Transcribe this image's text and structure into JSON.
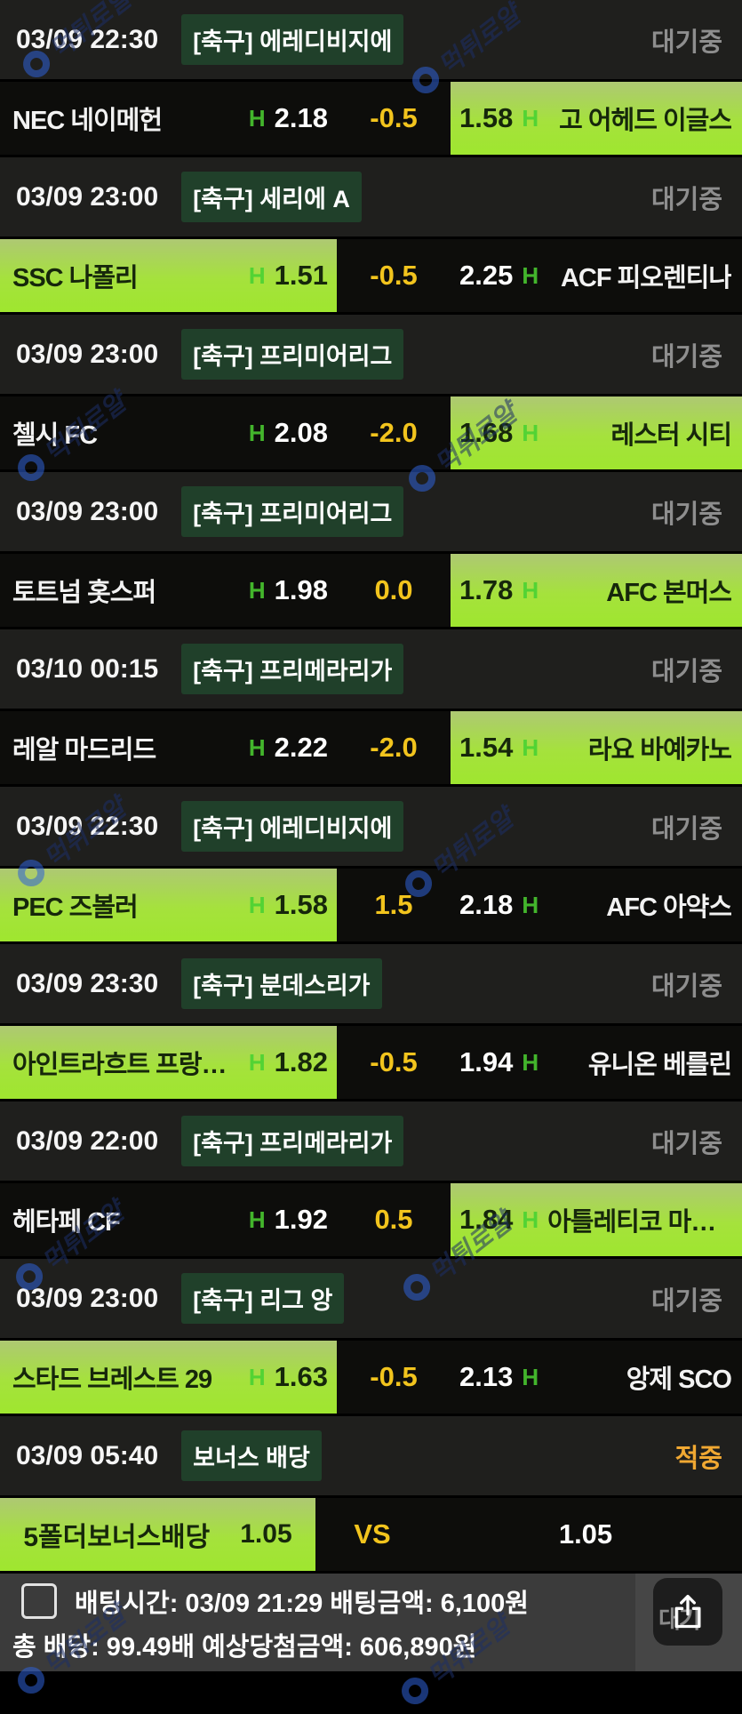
{
  "labels": {
    "h": "H",
    "status_waiting": "대기중",
    "status_hit": "적중"
  },
  "watermark": {
    "text": "먹튀로얄"
  },
  "colors": {
    "pick_green": "#9fe62f",
    "handicap_yellow": "#f2c41d",
    "h_green": "#43b52c",
    "hit_orange": "#f0a832",
    "header_bg": "#1f1f1d",
    "row_bg": "#0d0d0b",
    "badge_bg": "#20402a",
    "footer_bg": "#3b3b3b"
  },
  "list": {
    "sections": [
      {
        "header": {
          "time": "03/09 22:30",
          "league": "[축구] 에레디비지에",
          "status": "대기중"
        },
        "match": {
          "home": "NEC 네이메헌",
          "home_odds": "2.18",
          "handicap": "-0.5",
          "away_odds": "1.58",
          "away": "고 어헤드 이글스",
          "pick": "away"
        }
      },
      {
        "header": {
          "time": "03/09 23:00",
          "league": "[축구] 세리에 A",
          "status": "대기중"
        },
        "match": {
          "home": "SSC 나폴리",
          "home_odds": "1.51",
          "handicap": "-0.5",
          "away_odds": "2.25",
          "away": "ACF 피오렌티나",
          "pick": "home"
        }
      },
      {
        "header": {
          "time": "03/09 23:00",
          "league": "[축구] 프리미어리그",
          "status": "대기중"
        },
        "match": {
          "home": "첼시 FC",
          "home_odds": "2.08",
          "handicap": "-2.0",
          "away_odds": "1.68",
          "away": "레스터 시티",
          "pick": "away"
        }
      },
      {
        "header": {
          "time": "03/09 23:00",
          "league": "[축구] 프리미어리그",
          "status": "대기중"
        },
        "match": {
          "home": "토트넘 홋스퍼",
          "home_odds": "1.98",
          "handicap": "0.0",
          "away_odds": "1.78",
          "away": "AFC 본머스",
          "pick": "away"
        }
      },
      {
        "header": {
          "time": "03/10 00:15",
          "league": "[축구] 프리메라리가",
          "status": "대기중"
        },
        "match": {
          "home": "레알 마드리드",
          "home_odds": "2.22",
          "handicap": "-2.0",
          "away_odds": "1.54",
          "away": "라요 바예카노",
          "pick": "away"
        }
      },
      {
        "header": {
          "time": "03/09 22:30",
          "league": "[축구] 에레디비지에",
          "status": "대기중"
        },
        "match": {
          "home": "PEC 즈볼러",
          "home_odds": "1.58",
          "handicap": "1.5",
          "away_odds": "2.18",
          "away": "AFC 아약스",
          "pick": "home"
        }
      },
      {
        "header": {
          "time": "03/09 23:30",
          "league": "[축구] 분데스리가",
          "status": "대기중"
        },
        "match": {
          "home": "아인트라흐트 프랑크…",
          "home_odds": "1.82",
          "handicap": "-0.5",
          "away_odds": "1.94",
          "away": "유니온 베를린",
          "pick": "home"
        }
      },
      {
        "header": {
          "time": "03/09 22:00",
          "league": "[축구] 프리메라리가",
          "status": "대기중"
        },
        "match": {
          "home": "헤타페 CF",
          "home_odds": "1.92",
          "handicap": "0.5",
          "away_odds": "1.84",
          "away": "아틀레티코 마드리드",
          "pick": "away"
        }
      },
      {
        "header": {
          "time": "03/09 23:00",
          "league": "[축구] 리그 앙",
          "status": "대기중"
        },
        "match": {
          "home": "스타드 브레스트 29",
          "home_odds": "1.63",
          "handicap": "-0.5",
          "away_odds": "2.13",
          "away": "앙제 SCO",
          "pick": "home"
        }
      }
    ]
  },
  "bonus": {
    "header": {
      "time": "03/09 05:40",
      "league": "보너스 배당",
      "status": "적중"
    },
    "row": {
      "name": "5폴더보너스배당",
      "value": "1.05",
      "vs": "VS",
      "right_value": "1.05",
      "pick": "left"
    }
  },
  "footer": {
    "line1": "배팅시간: 03/09 21:29 배팅금액: 6,100원",
    "line2": "총 배당: 99.49배  예상당첨금액: 606,890원",
    "share_ghost": "대기"
  }
}
